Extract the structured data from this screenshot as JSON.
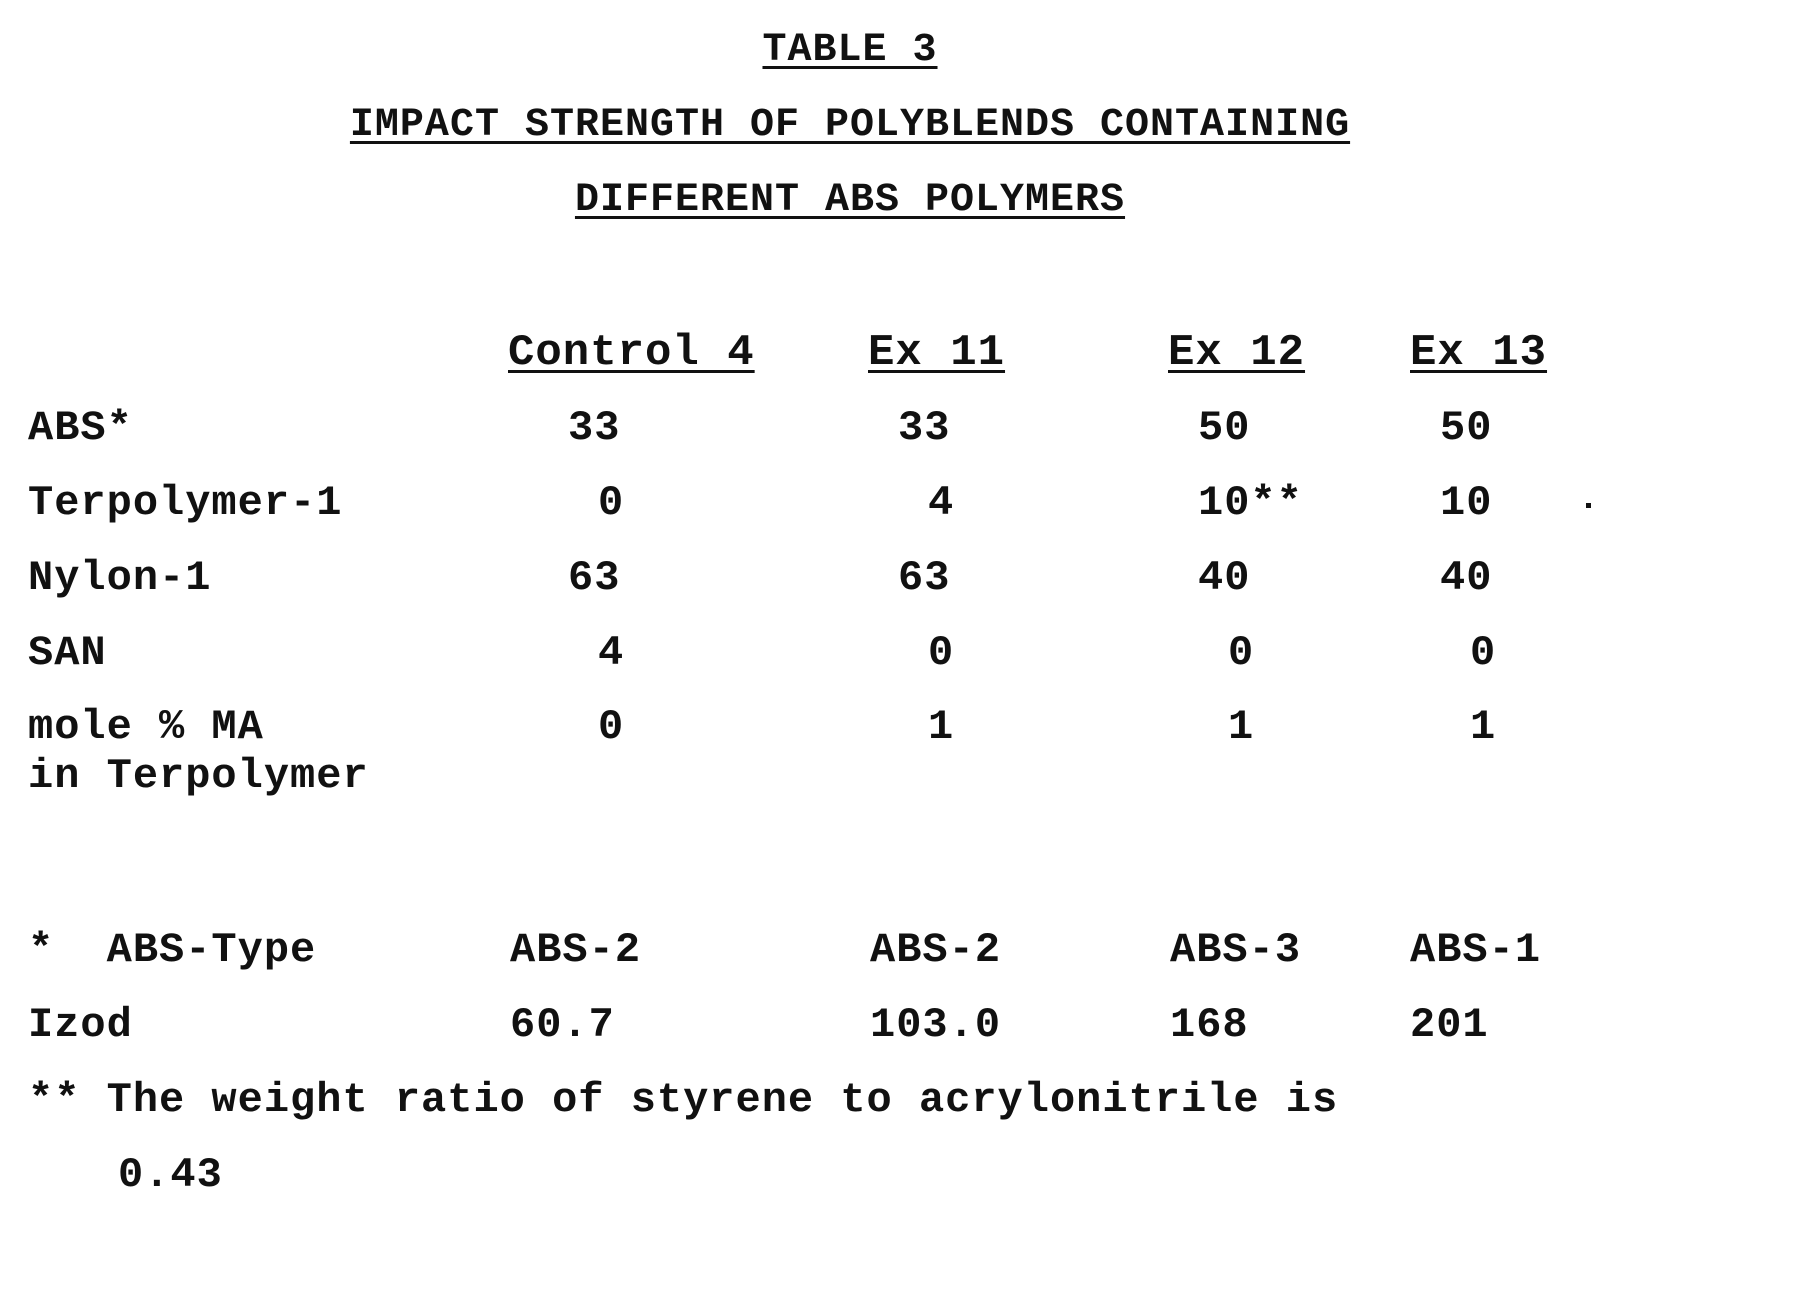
{
  "table": {
    "number": "TABLE 3",
    "title_line1": "IMPACT STRENGTH OF POLYBLENDS CONTAINING",
    "title_line2": "DIFFERENT ABS POLYMERS",
    "columns": [
      "Control 4",
      "Ex 11",
      "Ex 12",
      "Ex 13"
    ],
    "rows": [
      {
        "label": "ABS*",
        "values": [
          "33",
          "33",
          "50",
          "50"
        ]
      },
      {
        "label": "Terpolymer-1",
        "values": [
          "0",
          "4",
          "10**",
          "10"
        ]
      },
      {
        "label": "Nylon-1",
        "values": [
          "63",
          "63",
          "40",
          "40"
        ]
      },
      {
        "label": "SAN",
        "values": [
          "4",
          "0",
          "0",
          "0"
        ]
      },
      {
        "label": "mole % MA",
        "label2": "in Terpolymer",
        "values": [
          "0",
          "1",
          "1",
          "1"
        ]
      }
    ],
    "abs_type": {
      "label": "*  ABS-Type",
      "values": [
        "ABS-2",
        "ABS-2",
        "ABS-3",
        "ABS-1"
      ]
    },
    "izod": {
      "label": "Izod",
      "values": [
        "60.7",
        "103.0",
        "168",
        "201"
      ]
    },
    "footnote_line1": "** The weight ratio of styrene to acrylonitrile is",
    "footnote_line2": "0.43"
  }
}
